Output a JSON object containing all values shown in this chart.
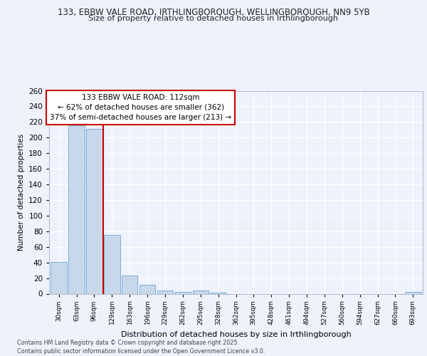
{
  "title_line1": "133, EBBW VALE ROAD, IRTHLINGBOROUGH, WELLINGBOROUGH, NN9 5YB",
  "title_line2": "Size of property relative to detached houses in Irthlingborough",
  "xlabel": "Distribution of detached houses by size in Irthlingborough",
  "ylabel": "Number of detached properties",
  "categories": [
    "30sqm",
    "63sqm",
    "96sqm",
    "129sqm",
    "163sqm",
    "196sqm",
    "229sqm",
    "262sqm",
    "295sqm",
    "328sqm",
    "362sqm",
    "395sqm",
    "428sqm",
    "461sqm",
    "494sqm",
    "527sqm",
    "560sqm",
    "594sqm",
    "627sqm",
    "660sqm",
    "693sqm"
  ],
  "values": [
    41,
    216,
    211,
    75,
    23,
    11,
    4,
    2,
    4,
    1,
    0,
    0,
    0,
    0,
    0,
    0,
    0,
    0,
    0,
    0,
    2
  ],
  "bar_color": "#c8d8ea",
  "bar_edge_color": "#7aafd4",
  "vline_x_index": 2,
  "vline_color": "#cc0000",
  "ylim": [
    0,
    260
  ],
  "yticks": [
    0,
    20,
    40,
    60,
    80,
    100,
    120,
    140,
    160,
    180,
    200,
    220,
    240,
    260
  ],
  "annotation_text": "133 EBBW VALE ROAD: 112sqm\n← 62% of detached houses are smaller (362)\n37% of semi-detached houses are larger (213) →",
  "annotation_box_color": "#ffffff",
  "annotation_box_edge": "#cc0000",
  "background_color": "#eef2fc",
  "grid_color": "#ffffff",
  "footer": "Contains HM Land Registry data © Crown copyright and database right 2025.\nContains public sector information licensed under the Open Government Licence v3.0."
}
